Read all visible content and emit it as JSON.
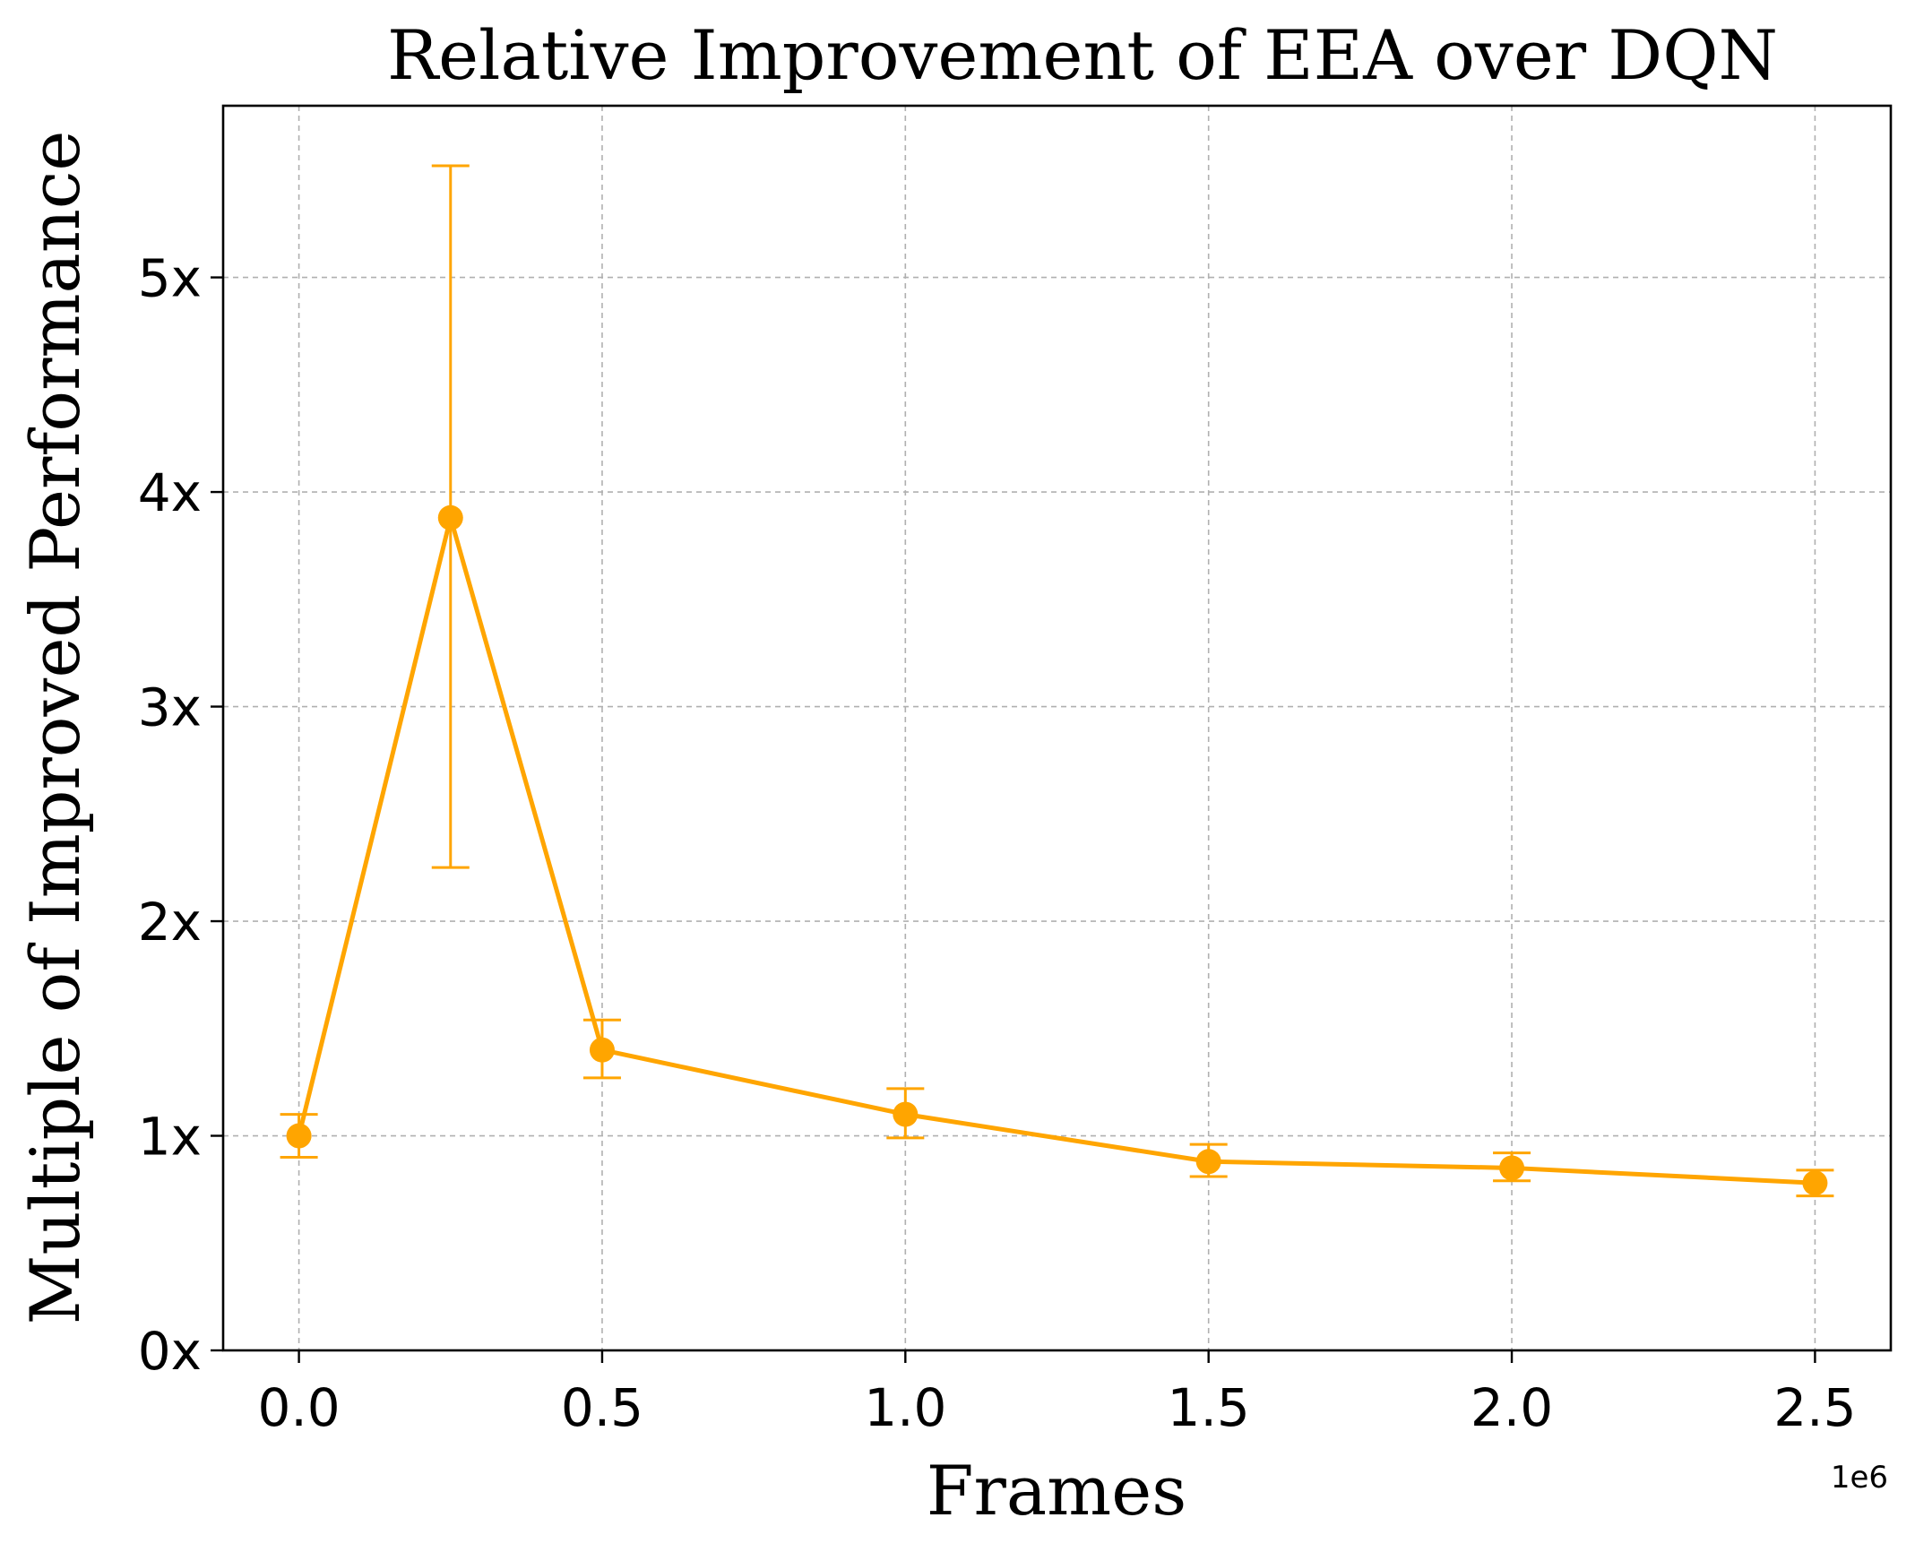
{
  "chart_data": {
    "type": "line",
    "title": "Relative Improvement of EEA over DQN",
    "xlabel": "Frames",
    "ylabel": "Multiple of Improved Performance",
    "x_offset_label": "1e6",
    "x_ticks": [
      0.0,
      0.5,
      1.0,
      1.5,
      2.0,
      2.5
    ],
    "x_tick_labels": [
      "0.0",
      "0.5",
      "1.0",
      "1.5",
      "2.0",
      "2.5"
    ],
    "y_ticks": [
      0,
      1,
      2,
      3,
      4,
      5
    ],
    "y_tick_labels": [
      "0x",
      "1x",
      "2x",
      "3x",
      "4x",
      "5x"
    ],
    "xlim": [
      -0.125,
      2.625
    ],
    "ylim": [
      0,
      5.8
    ],
    "grid": true,
    "series": [
      {
        "color": "#FFA500",
        "x": [
          0.0,
          0.25,
          0.5,
          1.0,
          1.5,
          2.0,
          2.5
        ],
        "y": [
          1.0,
          3.88,
          1.4,
          1.1,
          0.88,
          0.85,
          0.78
        ],
        "err_low": [
          0.9,
          2.25,
          1.27,
          0.99,
          0.81,
          0.79,
          0.72
        ],
        "err_high": [
          1.1,
          5.52,
          1.54,
          1.22,
          0.96,
          0.92,
          0.84
        ]
      }
    ]
  }
}
